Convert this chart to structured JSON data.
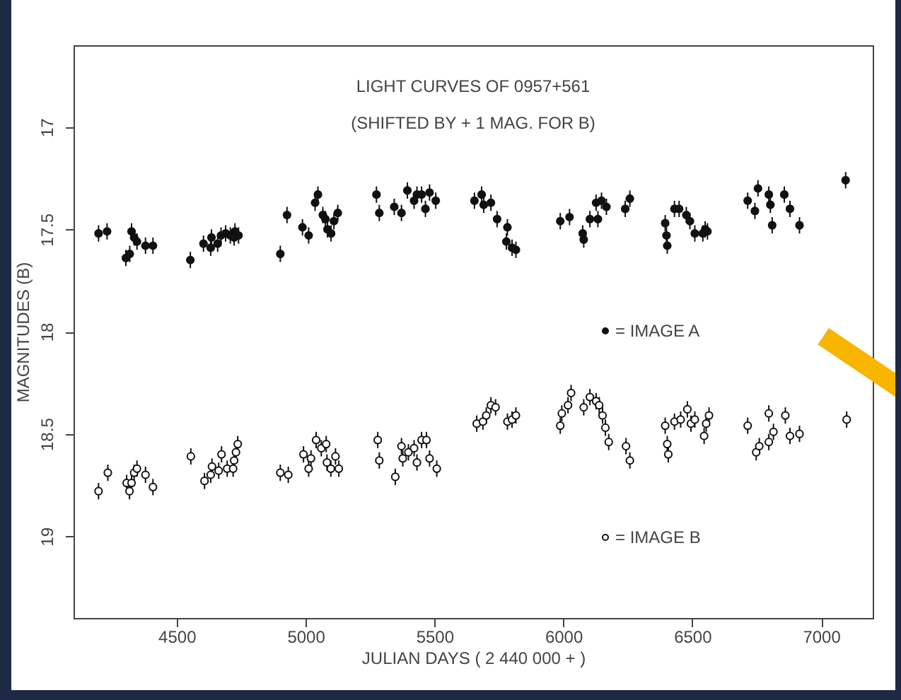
{
  "chart_data": {
    "type": "scatter",
    "title": "LIGHT CURVES OF 0957+561",
    "subtitle": "(SHIFTED BY + 1 MAG. FOR B)",
    "xlabel": "JULIAN DAYS ( 2 440 000 + )",
    "ylabel": "MAGNITUDES (B)",
    "xlim": [
      4100,
      7200
    ],
    "xticks": [
      4500,
      5000,
      5500,
      6000,
      6500,
      7000
    ],
    "ylim": [
      19.4,
      16.6
    ],
    "yticks": [
      17,
      17.5,
      18,
      18.5,
      19
    ],
    "grid": false,
    "legend": "right",
    "marker": "circle",
    "series": [
      {
        "name": "= IMAGE A",
        "color": "#111111",
        "x": [
          4197,
          4230,
          4303,
          4318,
          4325,
          4335,
          4346,
          4379,
          4408,
          4553,
          4604,
          4632,
          4635,
          4659,
          4672,
          4690,
          4708,
          4723,
          4726,
          4740,
          4902,
          4928,
          4988,
          5012,
          5037,
          5048,
          5067,
          5077,
          5085,
          5099,
          5110,
          5125,
          5275,
          5286,
          5344,
          5372,
          5395,
          5421,
          5432,
          5450,
          5465,
          5481,
          5505,
          5655,
          5683,
          5691,
          5719,
          5743,
          5783,
          5779,
          5801,
          5816,
          5988,
          6024,
          6075,
          6079,
          6103,
          6127,
          6134,
          6148,
          6167,
          6240,
          6258,
          6395,
          6400,
          6403,
          6431,
          6449,
          6477,
          6491,
          6510,
          6541,
          6550,
          6559,
          6715,
          6743,
          6755,
          6797,
          6803,
          6810,
          6857,
          6879,
          6916,
          7095
        ],
        "values": [
          17.52,
          17.51,
          17.64,
          17.62,
          17.51,
          17.54,
          17.56,
          17.58,
          17.58,
          17.65,
          17.57,
          17.59,
          17.54,
          17.57,
          17.53,
          17.52,
          17.53,
          17.54,
          17.51,
          17.53,
          17.62,
          17.43,
          17.49,
          17.53,
          17.37,
          17.33,
          17.43,
          17.45,
          17.5,
          17.52,
          17.46,
          17.42,
          17.33,
          17.42,
          17.39,
          17.42,
          17.31,
          17.36,
          17.33,
          17.33,
          17.4,
          17.32,
          17.36,
          17.36,
          17.33,
          17.38,
          17.37,
          17.45,
          17.49,
          17.56,
          17.59,
          17.6,
          17.46,
          17.44,
          17.52,
          17.55,
          17.45,
          17.37,
          17.45,
          17.36,
          17.39,
          17.4,
          17.35,
          17.47,
          17.53,
          17.58,
          17.4,
          17.4,
          17.43,
          17.46,
          17.52,
          17.52,
          17.5,
          17.51,
          17.36,
          17.41,
          17.3,
          17.33,
          17.38,
          17.48,
          17.33,
          17.4,
          17.48,
          17.26
        ],
        "errors": [
          0.04,
          0.04,
          0.04,
          0.04,
          0.04,
          0.04,
          0.04,
          0.04,
          0.04,
          0.04,
          0.04,
          0.04,
          0.04,
          0.04,
          0.04,
          0.04,
          0.04,
          0.04,
          0.04,
          0.04,
          0.04,
          0.04,
          0.04,
          0.04,
          0.04,
          0.04,
          0.04,
          0.04,
          0.04,
          0.04,
          0.04,
          0.04,
          0.04,
          0.04,
          0.04,
          0.04,
          0.04,
          0.04,
          0.04,
          0.04,
          0.04,
          0.04,
          0.04,
          0.04,
          0.04,
          0.04,
          0.04,
          0.04,
          0.04,
          0.04,
          0.04,
          0.04,
          0.04,
          0.04,
          0.04,
          0.04,
          0.04,
          0.04,
          0.04,
          0.04,
          0.04,
          0.04,
          0.04,
          0.04,
          0.04,
          0.04,
          0.04,
          0.04,
          0.04,
          0.04,
          0.04,
          0.04,
          0.04,
          0.04,
          0.04,
          0.04,
          0.04,
          0.04,
          0.04,
          0.04,
          0.04,
          0.04,
          0.04,
          0.04
        ]
      },
      {
        "name": "= IMAGE B",
        "color": "#111111",
        "x": [
          4197,
          4233,
          4306,
          4317,
          4325,
          4335,
          4346,
          4379,
          4408,
          4555,
          4608,
          4632,
          4637,
          4663,
          4674,
          4696,
          4719,
          4723,
          4730,
          4737,
          4902,
          4933,
          4992,
          5012,
          5021,
          5041,
          5061,
          5080,
          5083,
          5098,
          5116,
          5129,
          5280,
          5286,
          5348,
          5372,
          5377,
          5399,
          5421,
          5432,
          5450,
          5469,
          5481,
          5509,
          5664,
          5688,
          5701,
          5719,
          5737,
          5783,
          5801,
          5816,
          5988,
          5994,
          6018,
          6030,
          6079,
          6103,
          6127,
          6139,
          6152,
          6163,
          6176,
          6243,
          6258,
          6395,
          6403,
          6407,
          6431,
          6455,
          6481,
          6495,
          6510,
          6546,
          6554,
          6565,
          6715,
          6748,
          6760,
          6797,
          6797,
          6815,
          6861,
          6879,
          6916,
          7099
        ],
        "values": [
          18.78,
          18.69,
          18.74,
          18.78,
          18.74,
          18.69,
          18.67,
          18.7,
          18.76,
          18.61,
          18.73,
          18.7,
          18.66,
          18.68,
          18.6,
          18.67,
          18.67,
          18.63,
          18.59,
          18.55,
          18.69,
          18.7,
          18.6,
          18.67,
          18.62,
          18.53,
          18.57,
          18.55,
          18.64,
          18.67,
          18.61,
          18.67,
          18.53,
          18.63,
          18.71,
          18.56,
          18.62,
          18.59,
          18.57,
          18.64,
          18.53,
          18.53,
          18.62,
          18.67,
          18.45,
          18.44,
          18.41,
          18.36,
          18.37,
          18.44,
          18.43,
          18.41,
          18.46,
          18.4,
          18.36,
          18.3,
          18.37,
          18.32,
          18.34,
          18.36,
          18.41,
          18.47,
          18.54,
          18.56,
          18.63,
          18.46,
          18.55,
          18.6,
          18.44,
          18.43,
          18.38,
          18.45,
          18.43,
          18.51,
          18.45,
          18.41,
          18.46,
          18.59,
          18.56,
          18.4,
          18.54,
          18.49,
          18.41,
          18.51,
          18.5,
          18.43
        ],
        "errors": [
          0.04,
          0.04,
          0.04,
          0.04,
          0.04,
          0.04,
          0.04,
          0.04,
          0.04,
          0.04,
          0.04,
          0.04,
          0.04,
          0.04,
          0.04,
          0.04,
          0.04,
          0.04,
          0.04,
          0.04,
          0.04,
          0.04,
          0.04,
          0.04,
          0.04,
          0.04,
          0.04,
          0.04,
          0.04,
          0.04,
          0.04,
          0.04,
          0.04,
          0.04,
          0.04,
          0.04,
          0.04,
          0.04,
          0.04,
          0.04,
          0.04,
          0.04,
          0.04,
          0.04,
          0.04,
          0.04,
          0.04,
          0.04,
          0.04,
          0.04,
          0.04,
          0.04,
          0.04,
          0.04,
          0.04,
          0.04,
          0.04,
          0.04,
          0.04,
          0.04,
          0.04,
          0.04,
          0.04,
          0.04,
          0.04,
          0.04,
          0.04,
          0.04,
          0.04,
          0.04,
          0.04,
          0.04,
          0.04,
          0.04,
          0.04,
          0.04,
          0.04,
          0.04,
          0.04,
          0.04,
          0.04,
          0.04,
          0.04,
          0.04,
          0.04,
          0.04
        ]
      }
    ]
  }
}
